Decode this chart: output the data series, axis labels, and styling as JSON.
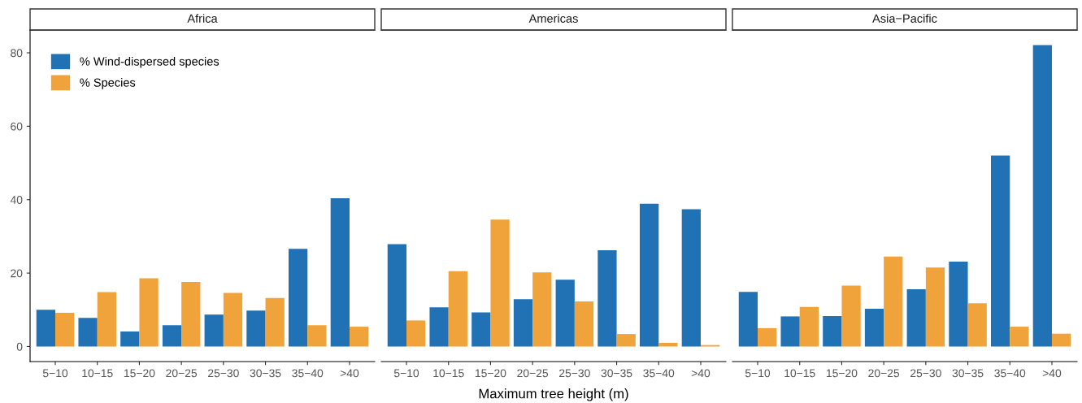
{
  "chart_data": [
    {
      "type": "bar",
      "title": "Africa",
      "categories": [
        "5−10",
        "10−15",
        "15−20",
        "20−25",
        "25−30",
        "30−35",
        "35−40",
        ">40"
      ],
      "series": [
        {
          "name": "% Wind-dispersed species",
          "color": "#2171b5",
          "values": [
            10.0,
            7.8,
            4.1,
            5.8,
            8.7,
            9.8,
            26.6,
            40.4
          ]
        },
        {
          "name": "% Species",
          "color": "#f0a33a",
          "values": [
            9.2,
            14.8,
            18.6,
            17.6,
            14.6,
            13.2,
            5.8,
            5.4
          ]
        }
      ],
      "ylim": [
        -4.1,
        86.2
      ],
      "yticks": [
        0,
        20,
        40,
        60,
        80
      ],
      "legend": "top left",
      "grid": false
    },
    {
      "type": "bar",
      "title": "Americas",
      "xlabel": "Maximum tree height (m)",
      "categories": [
        "5−10",
        "10−15",
        "15−20",
        "20−25",
        "25−30",
        "30−35",
        "35−40",
        ">40"
      ],
      "series": [
        {
          "color": "#2171b5",
          "values": [
            27.9,
            10.7,
            9.3,
            12.9,
            18.2,
            26.2,
            38.9,
            37.4
          ]
        },
        {
          "color": "#f0a33a",
          "values": [
            7.1,
            20.5,
            34.6,
            20.2,
            12.3,
            3.4,
            1.0,
            0.4
          ]
        }
      ],
      "ylim": [
        -4.1,
        86.2
      ],
      "yticks": [
        0,
        20,
        40,
        60,
        80
      ],
      "tick_labels": "x",
      "grid": false
    },
    {
      "type": "bar",
      "title": "Asia−Pacific",
      "categories": [
        "5−10",
        "10−15",
        "15−20",
        "20−25",
        "25−30",
        "30−35",
        "35−40",
        ">40"
      ],
      "series": [
        {
          "color": "#2171b5",
          "values": [
            14.9,
            8.2,
            8.3,
            10.3,
            15.6,
            23.1,
            52.0,
            82.1
          ]
        },
        {
          "color": "#f0a33a",
          "values": [
            5.0,
            10.8,
            16.6,
            24.5,
            21.5,
            11.8,
            5.4,
            3.5
          ]
        }
      ],
      "ylim": [
        -4.1,
        86.2
      ],
      "yticks": [
        0,
        20,
        40,
        60,
        80
      ],
      "tick_labels": "x",
      "grid": false
    }
  ]
}
